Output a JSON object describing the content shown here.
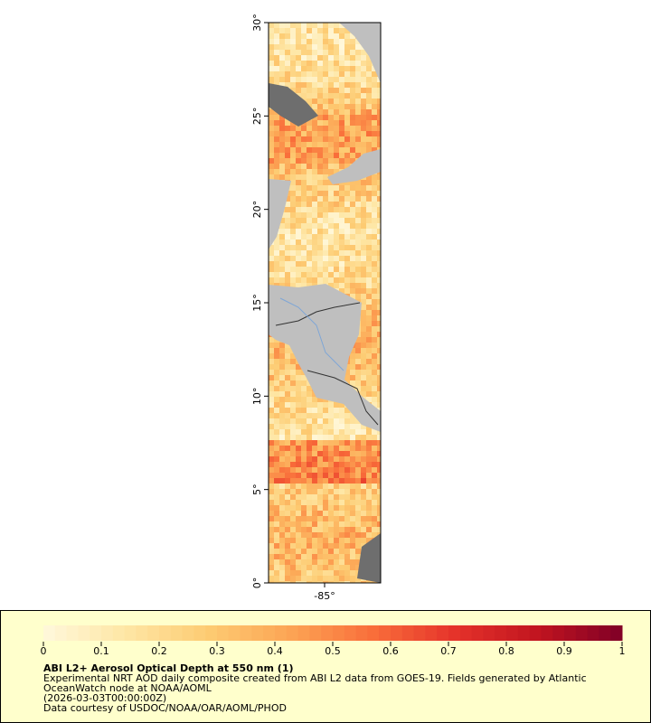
{
  "map": {
    "ylim": [
      0,
      30
    ],
    "xlim": [
      -88,
      -82
    ],
    "yticks": [
      {
        "value": 0,
        "label": "0°"
      },
      {
        "value": 5,
        "label": "5°"
      },
      {
        "value": 10,
        "label": "10°"
      },
      {
        "value": 15,
        "label": "15°"
      },
      {
        "value": 20,
        "label": "20°"
      },
      {
        "value": 25,
        "label": "25°"
      },
      {
        "value": 30,
        "label": "30°"
      }
    ],
    "xticks": [
      {
        "value": -85,
        "label": "-85°"
      }
    ]
  },
  "colorbar": {
    "lim": [
      0,
      1
    ],
    "ticks": [
      0,
      0.1,
      0.2,
      0.3,
      0.4,
      0.5,
      0.6,
      0.7,
      0.8,
      0.9,
      1
    ],
    "colors": [
      "#fff8dc",
      "#fee6a4",
      "#fdcb72",
      "#fca454",
      "#f96d3a",
      "#e4312a",
      "#c0141f",
      "#800026"
    ]
  },
  "legend": {
    "title": "ABI L2+ Aerosol Optical Depth at 550 nm (1)",
    "lines": [
      "Experimental NRT AOD daily composite created from ABI L2 data from GOES-19. Fields generated by Atlantic",
      "OceanWatch node at NOAA/AOML",
      "(2026-03-03T00:00:00Z)",
      "Data courtesy of USDOC/NOAA/OAR/AOML/PHOD"
    ]
  }
}
